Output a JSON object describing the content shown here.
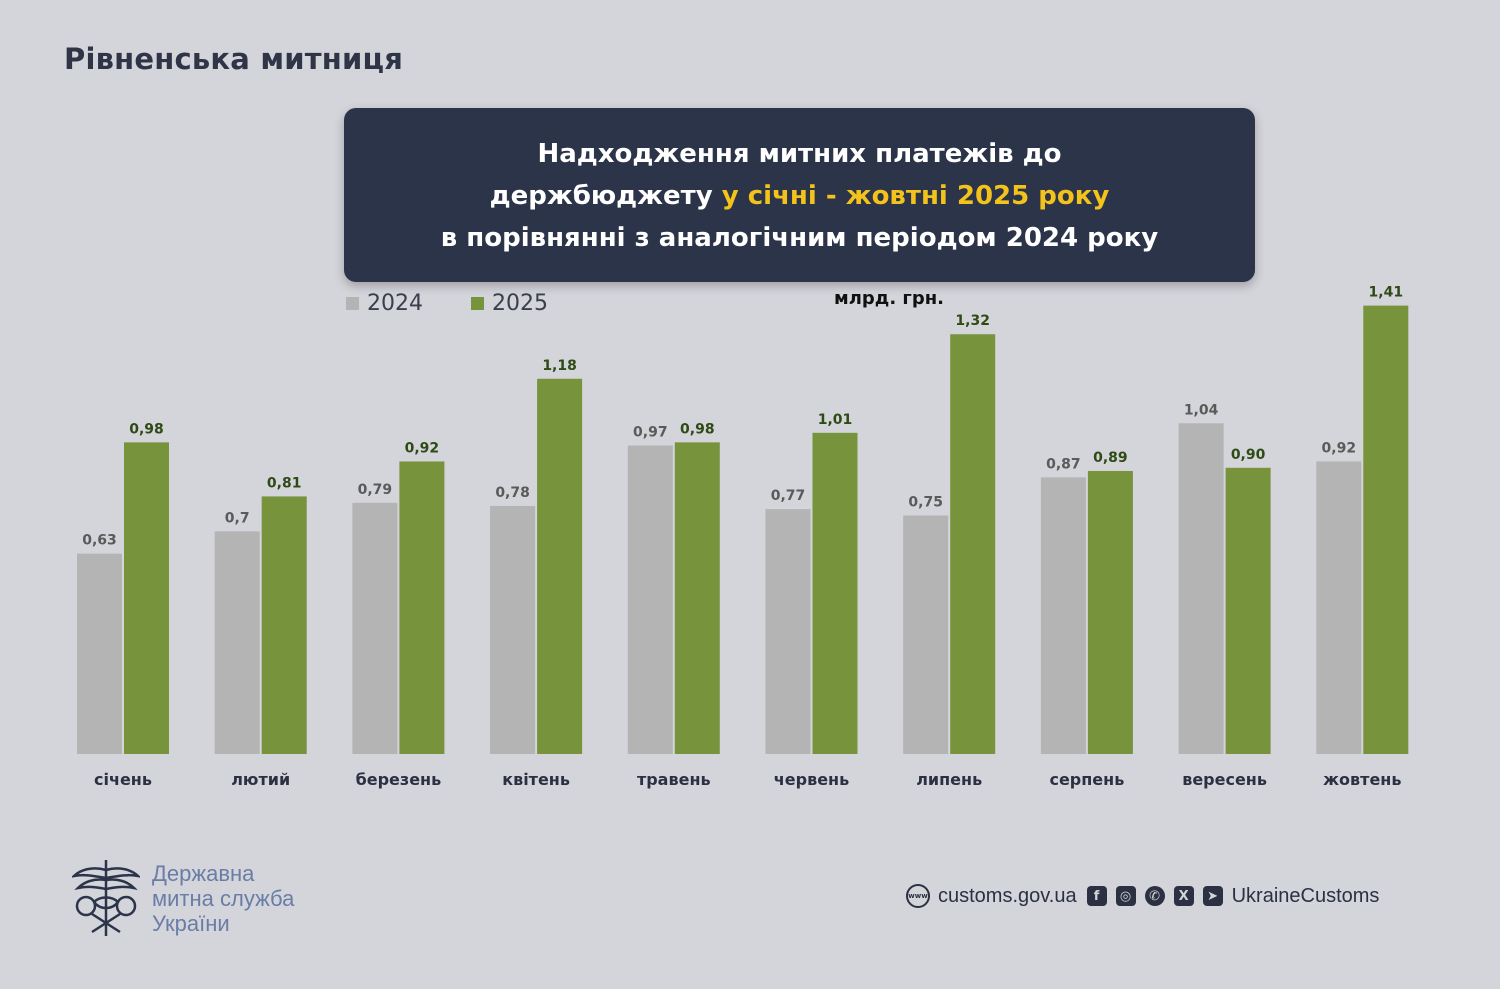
{
  "header": {
    "org_title": "Рівненська митниця"
  },
  "title_box": {
    "line1": "Надходження митних платежів до",
    "line2_plain": "держбюджету ",
    "line2_highlight": "у січні - жовтні 2025 року",
    "line3": "в порівнянні з аналогічним періодом 2024 року"
  },
  "legend": {
    "series_2024": "2024",
    "series_2025": "2025"
  },
  "unit_label": "млрд. грн.",
  "colors": {
    "bar_2024": "#b4b4b4",
    "bar_2025": "#77933c",
    "label_2024": "#5a5a5a",
    "label_2025": "#2f4a14",
    "accent": "#f3c31b"
  },
  "chart_data": {
    "type": "bar",
    "categories": [
      "січень",
      "лютий",
      "березень",
      "квітень",
      "травень",
      "червень",
      "липень",
      "серпень",
      "вересень",
      "жовтень"
    ],
    "series": [
      {
        "name": "2024",
        "values": [
          0.63,
          0.7,
          0.79,
          0.78,
          0.97,
          0.77,
          0.75,
          0.87,
          1.04,
          0.92
        ],
        "labels": [
          "0,63",
          "0,7",
          "0,79",
          "0,78",
          "0,97",
          "0,77",
          "0,75",
          "0,87",
          "1,04",
          "0,92"
        ]
      },
      {
        "name": "2025",
        "values": [
          0.98,
          0.81,
          0.92,
          1.18,
          0.98,
          1.01,
          1.32,
          0.89,
          0.9,
          1.41
        ],
        "labels": [
          "0,98",
          "0,81",
          "0,92",
          "1,18",
          "0,98",
          "1,01",
          "1,32",
          "0,89",
          "0,90",
          "1,41"
        ]
      }
    ],
    "ylim": [
      0,
      1.41
    ],
    "grid": false,
    "legend_position": "top-left"
  },
  "footer": {
    "org_name_line1": "Державна",
    "org_name_line2": "митна служба",
    "org_name_line3": "України",
    "website": "customs.gov.ua",
    "social_handle": "UkraineCustoms",
    "icons": [
      "globe-icon",
      "facebook-icon",
      "instagram-icon",
      "whatsapp-icon",
      "x-icon",
      "telegram-icon"
    ]
  }
}
